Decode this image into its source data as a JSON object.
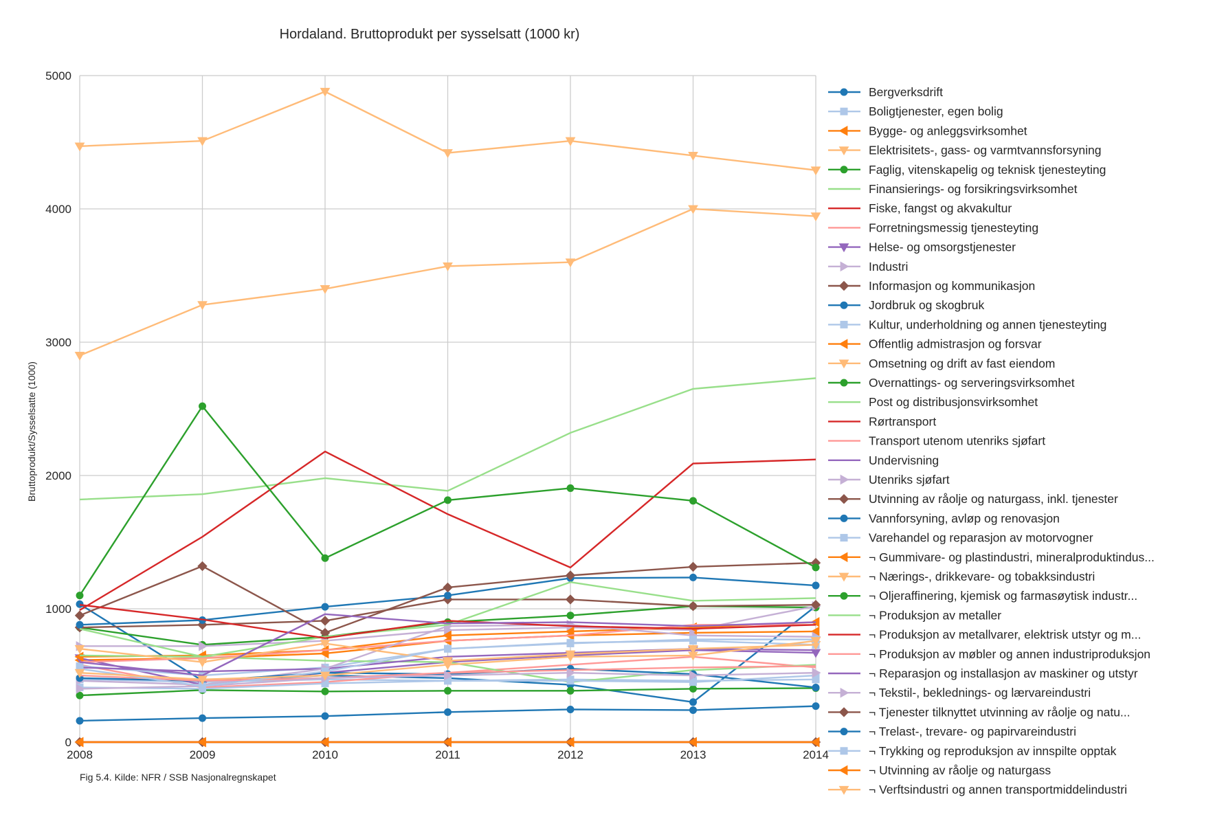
{
  "chart_data": {
    "type": "line",
    "title": "Hordaland. Bruttoprodukt per sysselsatt (1000 kr)",
    "xlabel": "",
    "ylabel": "Bruttoprodukt/Sysselsatte (1000)",
    "caption": "Fig 5.4. Kilde: NFR / SSB Nasjonalregnskapet",
    "x": [
      "2008",
      "2009",
      "2010",
      "2011",
      "2012",
      "2013",
      "2014"
    ],
    "xlim": [
      2008,
      2014
    ],
    "ylim": [
      0,
      5000
    ],
    "y_ticks": [
      "0",
      "1000",
      "2000",
      "3000",
      "4000",
      "5000"
    ],
    "grid": true,
    "legend_position": "right",
    "series": [
      {
        "name": "Bergverksdrift",
        "color": "#1f77b4",
        "marker": "circle",
        "values": [
          1035,
          460,
          500,
          480,
          430,
          300,
          1020
        ]
      },
      {
        "name": "Boligtjenester, egen bolig",
        "color": "#aec7e8",
        "marker": "square",
        "values": [
          470,
          450,
          470,
          460,
          470,
          460,
          470
        ]
      },
      {
        "name": "Bygge- og anleggsvirksomhet",
        "color": "#ff7f0e",
        "marker": "triangle-left",
        "values": [
          615,
          630,
          665,
          760,
          800,
          820,
          830
        ]
      },
      {
        "name": "Elektrisitets-, gass- og varmtvannsforsyning",
        "color": "#ffbb78",
        "marker": "triangle-down",
        "values": [
          4470,
          4510,
          4880,
          4420,
          4510,
          4400,
          4290
        ]
      },
      {
        "name": "Faglig, vitenskapelig og teknisk tjenesteyting",
        "color": "#2ca02c",
        "marker": "circle",
        "values": [
          860,
          730,
          790,
          900,
          950,
          1020,
          1010
        ]
      },
      {
        "name": "Finansierings- og forsikringsvirksomhet",
        "color": "#98df8a",
        "marker": "none",
        "values": [
          1820,
          1860,
          1980,
          1885,
          2320,
          2650,
          2730
        ]
      },
      {
        "name": "Fiske, fangst og akvakultur",
        "color": "#d62728",
        "marker": "none",
        "values": [
          990,
          1540,
          2180,
          1710,
          1310,
          2090,
          2120
        ]
      },
      {
        "name": "Forretningsmessig tjenesteyting",
        "color": "#ff9896",
        "marker": "none",
        "values": [
          580,
          410,
          450,
          520,
          580,
          640,
          560
        ]
      },
      {
        "name": "Helse- og omsorgstjenester",
        "color": "#9467bd",
        "marker": "triangle-down",
        "values": [
          630,
          430,
          520,
          600,
          650,
          690,
          670
        ]
      },
      {
        "name": "Industri",
        "color": "#c5b0d5",
        "marker": "triangle-right",
        "values": [
          720,
          720,
          760,
          840,
          860,
          840,
          1020
        ]
      },
      {
        "name": "Informasjon og kommunikasjon",
        "color": "#8c564b",
        "marker": "diamond",
        "values": [
          860,
          880,
          910,
          1070,
          1070,
          1020,
          1030
        ]
      },
      {
        "name": "Jordbruk og skogbruk",
        "color": "#1f77b4",
        "marker": "circle",
        "values": [
          880,
          915,
          1015,
          1100,
          1230,
          1235,
          1175
        ]
      },
      {
        "name": "Kultur, underholdning og annen tjenesteyting",
        "color": "#aec7e8",
        "marker": "square",
        "values": [
          570,
          500,
          560,
          700,
          745,
          760,
          730
        ]
      },
      {
        "name": "Offentlig admistrasjon og forsvar",
        "color": "#ff7f0e",
        "marker": "triangle-left",
        "values": [
          640,
          650,
          690,
          800,
          830,
          860,
          900
        ]
      },
      {
        "name": "Omsetning og drift av fast eiendom",
        "color": "#ffbb78",
        "marker": "triangle-down",
        "values": [
          2900,
          3280,
          3400,
          3570,
          3600,
          4000,
          3945
        ]
      },
      {
        "name": "Overnattings- og serveringsvirksomhet",
        "color": "#2ca02c",
        "marker": "circle",
        "values": [
          350,
          390,
          380,
          385,
          385,
          400,
          405
        ]
      },
      {
        "name": "Post og distribusjonsvirksomhet",
        "color": "#98df8a",
        "marker": "none",
        "values": [
          650,
          640,
          610,
          600,
          450,
          540,
          580
        ]
      },
      {
        "name": "Rørtransport",
        "color": "#d62728",
        "marker": "none",
        "values": [
          0,
          0,
          0,
          0,
          0,
          0,
          0
        ]
      },
      {
        "name": "Transport utenom utenriks sjøfart",
        "color": "#ff9896",
        "marker": "none",
        "values": [
          600,
          630,
          690,
          760,
          800,
          880,
          880
        ]
      },
      {
        "name": "Undervisning",
        "color": "#9467bd",
        "marker": "none",
        "values": [
          560,
          530,
          550,
          640,
          670,
          700,
          690
        ]
      },
      {
        "name": "Utenriks sjøfart",
        "color": "#c5b0d5",
        "marker": "triangle-right",
        "values": [
          460,
          430,
          550,
          870,
          880,
          800,
          790
        ]
      },
      {
        "name": "Utvinning av råolje og naturgass, inkl. tjenester",
        "color": "#8c564b",
        "marker": "diamond",
        "values": [
          950,
          1320,
          820,
          1160,
          1250,
          1315,
          1345
        ]
      },
      {
        "name": "Vannforsyning, avløp og renovasjon",
        "color": "#1f77b4",
        "marker": "circle",
        "values": [
          480,
          460,
          520,
          510,
          550,
          510,
          410
        ]
      },
      {
        "name": "Varehandel og reparasjon av motorvogner",
        "color": "#aec7e8",
        "marker": "square",
        "values": [
          410,
          400,
          440,
          460,
          460,
          450,
          500
        ]
      },
      {
        "name": "¬ Gummivare- og plastindustri, mineralproduktindus...",
        "color": "#ff7f0e",
        "marker": "triangle-left",
        "values": [
          0,
          0,
          0,
          0,
          0,
          0,
          0
        ]
      },
      {
        "name": "¬ Nærings-, drikkevare- og tobakksindustri",
        "color": "#ffbb78",
        "marker": "triangle-down",
        "values": [
          700,
          600,
          740,
          610,
          660,
          700,
          730
        ]
      },
      {
        "name": "¬ Oljeraffinering, kjemisk og farmasøytisk industr...",
        "color": "#2ca02c",
        "marker": "circle",
        "values": [
          1100,
          2520,
          1380,
          1815,
          1905,
          1810,
          1310
        ]
      },
      {
        "name": "¬ Produksjon av metaller",
        "color": "#98df8a",
        "marker": "none",
        "values": [
          850,
          640,
          790,
          880,
          1200,
          1060,
          1080
        ]
      },
      {
        "name": "¬ Produksjon av metallvarer, elektrisk utstyr og m...",
        "color": "#d62728",
        "marker": "none",
        "values": [
          1030,
          920,
          780,
          910,
          870,
          850,
          880
        ]
      },
      {
        "name": "¬ Produksjon av møbler og annen industriproduksjon",
        "color": "#ff9896",
        "marker": "none",
        "values": [
          500,
          460,
          480,
          520,
          540,
          560,
          570
        ]
      },
      {
        "name": "¬ Reparasjon og installasjon av maskiner og utstyr",
        "color": "#9467bd",
        "marker": "none",
        "values": [
          600,
          500,
          960,
          890,
          900,
          870,
          900
        ]
      },
      {
        "name": "¬ Tekstil-, beklednings- og lærvareindustri",
        "color": "#c5b0d5",
        "marker": "triangle-right",
        "values": [
          400,
          420,
          480,
          500,
          520,
          500,
          520
        ]
      },
      {
        "name": "¬ Tjenester tilknyttet utvinning av råolje og natu...",
        "color": "#8c564b",
        "marker": "diamond",
        "values": [
          0,
          0,
          0,
          0,
          0,
          0,
          0
        ]
      },
      {
        "name": "¬ Trelast-, trevare- og papirvareindustri",
        "color": "#1f77b4",
        "marker": "circle",
        "values": [
          160,
          180,
          195,
          225,
          245,
          240,
          270
        ]
      },
      {
        "name": "¬ Trykking og reproduksjon av innspilte opptak",
        "color": "#aec7e8",
        "marker": "square",
        "values": [
          550,
          420,
          530,
          700,
          740,
          770,
          770
        ]
      },
      {
        "name": "¬ Utvinning av råolje og naturgass",
        "color": "#ff7f0e",
        "marker": "triangle-left",
        "values": [
          0,
          0,
          0,
          0,
          0,
          0,
          0
        ]
      },
      {
        "name": "¬ Verftsindustri og annen transportmiddelindustri",
        "color": "#ffbb78",
        "marker": "triangle-down",
        "values": [
          520,
          470,
          500,
          580,
          640,
          650,
          760
        ]
      }
    ]
  }
}
